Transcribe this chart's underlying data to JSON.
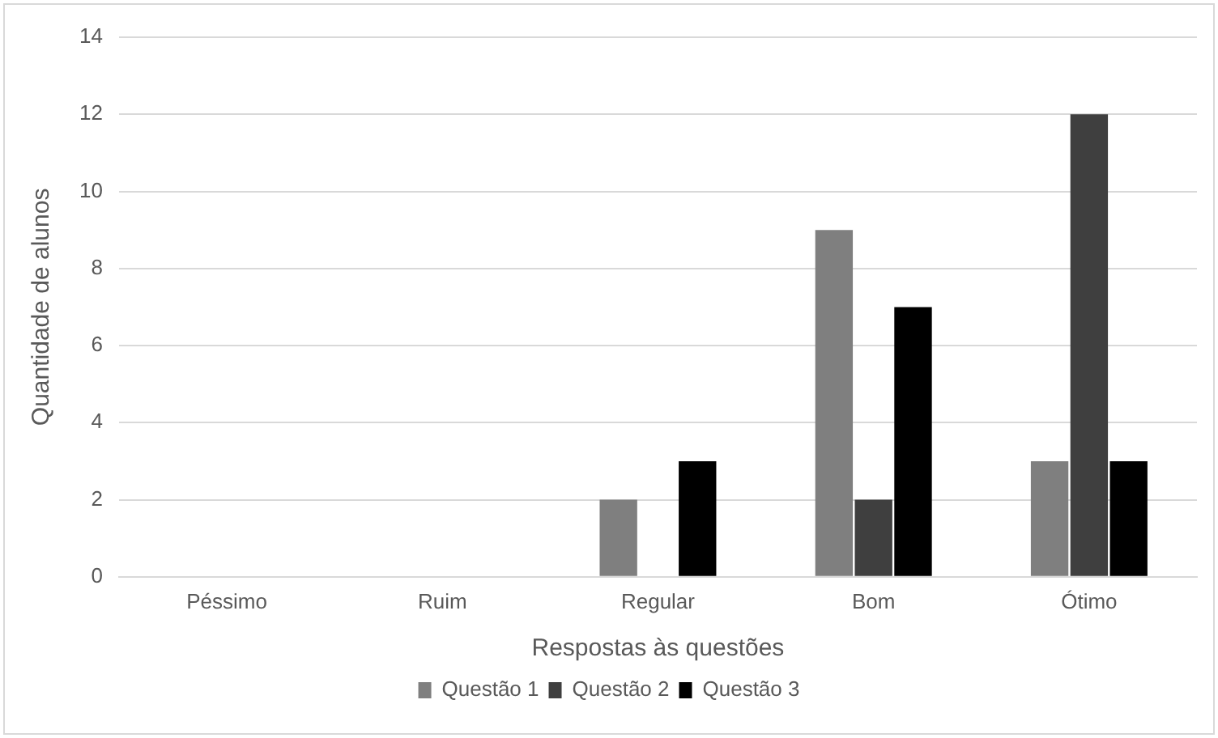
{
  "chart_data": {
    "type": "bar",
    "xlabel": "Respostas às questões",
    "ylabel": "Quantidade de alunos",
    "categories": [
      "Péssimo",
      "Ruim",
      "Regular",
      "Bom",
      "Ótimo"
    ],
    "series": [
      {
        "name": "Questão 1",
        "color": "#7f7f7f",
        "values": [
          0,
          0,
          2,
          9,
          3
        ]
      },
      {
        "name": "Questão 2",
        "color": "#3f3f3f",
        "values": [
          0,
          0,
          0,
          2,
          12
        ]
      },
      {
        "name": "Questão 3",
        "color": "#000000",
        "values": [
          0,
          0,
          3,
          7,
          3
        ]
      }
    ],
    "ylim": [
      0,
      14
    ],
    "yticks": [
      0,
      2,
      4,
      6,
      8,
      10,
      12,
      14
    ],
    "grid": "y",
    "legend": "bottom"
  }
}
